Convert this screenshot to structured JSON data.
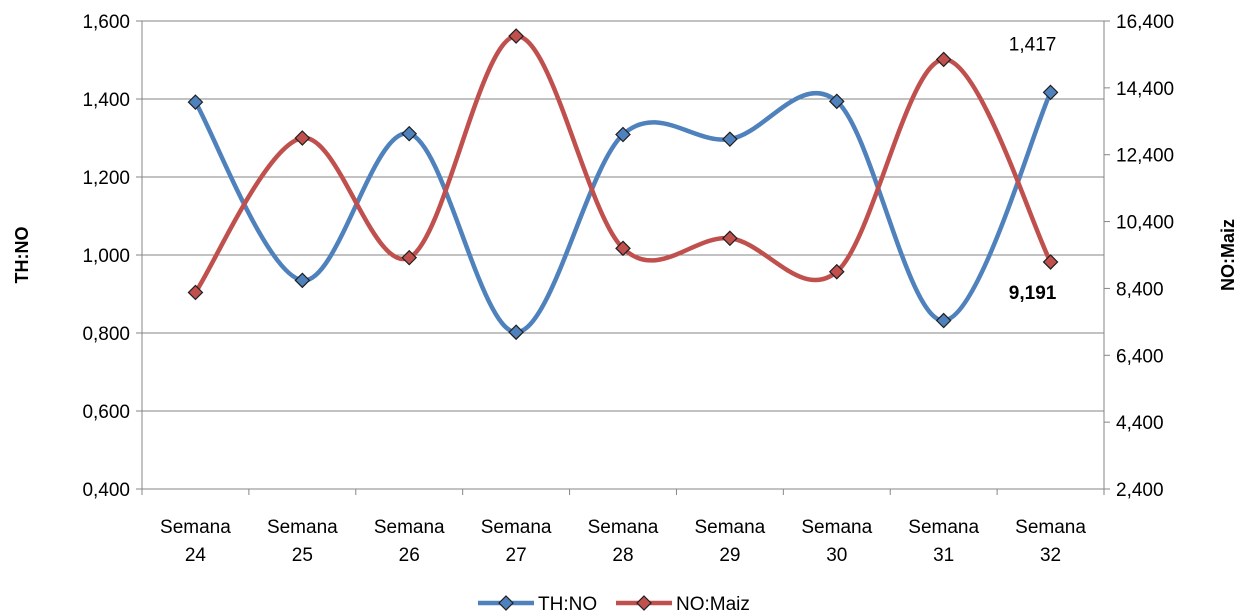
{
  "chart_data": {
    "type": "line",
    "categories": [
      "Semana 24",
      "Semana 25",
      "Semana 26",
      "Semana 27",
      "Semana 28",
      "Semana 29",
      "Semana 30",
      "Semana 31",
      "Semana 32"
    ],
    "category_lines": [
      [
        "Semana",
        "24"
      ],
      [
        "Semana",
        "25"
      ],
      [
        "Semana",
        "26"
      ],
      [
        "Semana",
        "27"
      ],
      [
        "Semana",
        "28"
      ],
      [
        "Semana",
        "29"
      ],
      [
        "Semana",
        "30"
      ],
      [
        "Semana",
        "31"
      ],
      [
        "Semana",
        "32"
      ]
    ],
    "series": [
      {
        "name": "TH:NO",
        "axis": "left",
        "color": "#4f81bd",
        "values": [
          1.392,
          0.935,
          1.311,
          0.802,
          1.309,
          1.297,
          1.394,
          0.832,
          1.417
        ]
      },
      {
        "name": "NO:Maiz",
        "axis": "right",
        "color": "#c0504d",
        "values": [
          8280,
          12900,
          9320,
          15950,
          9600,
          9900,
          8900,
          15250,
          9191
        ]
      }
    ],
    "y_left": {
      "label": "TH:NO",
      "range": [
        0.4,
        1.6
      ],
      "ticks": [
        0.4,
        0.6,
        0.8,
        1.0,
        1.2,
        1.4,
        1.6
      ],
      "tick_labels": [
        "0,400",
        "0,600",
        "0,800",
        "1,000",
        "1,200",
        "1,400",
        "1,600"
      ]
    },
    "y_right": {
      "label": "NO:Maiz",
      "range": [
        2400,
        16400
      ],
      "ticks": [
        2400,
        4400,
        6400,
        8400,
        10400,
        12400,
        14400,
        16400
      ],
      "tick_labels": [
        "2,400",
        "4,400",
        "6,400",
        "8,400",
        "10,400",
        "12,400",
        "14,400",
        "16,400"
      ]
    },
    "data_labels": [
      {
        "series": "TH:NO",
        "index": 8,
        "text": "1,417",
        "bold": false
      },
      {
        "series": "NO:Maiz",
        "index": 8,
        "text": "9,191",
        "bold": true
      }
    ],
    "grid": true,
    "legend": "bottom",
    "smooth": true
  }
}
